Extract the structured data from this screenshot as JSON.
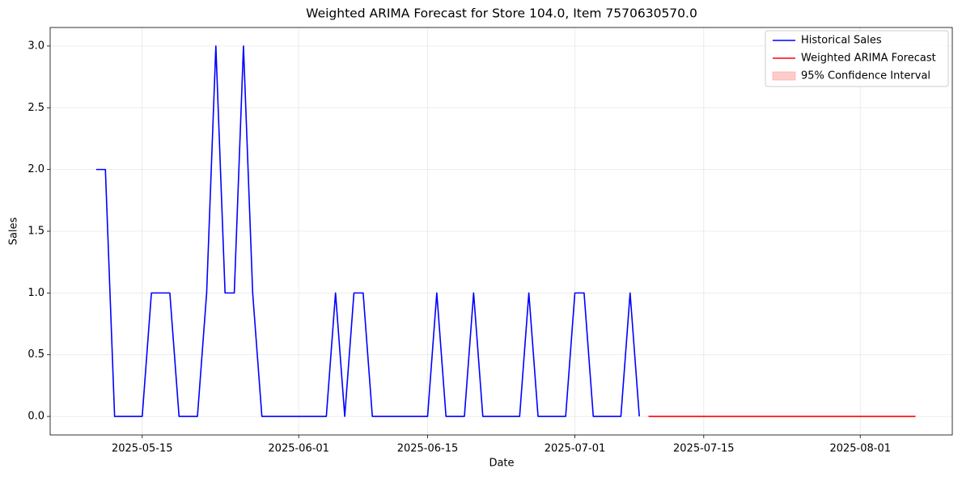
{
  "chart_data": {
    "type": "line",
    "title": "Weighted ARIMA Forecast for Store 104.0, Item 7570630570.0",
    "x_label": "Date",
    "y_label": "Sales",
    "xlim": [
      "2025-05-05",
      "2025-08-11"
    ],
    "xticks": [
      "2025-05-15",
      "2025-06-01",
      "2025-06-15",
      "2025-07-01",
      "2025-07-15",
      "2025-08-01"
    ],
    "ylim": [
      -0.15,
      3.15
    ],
    "yticks": [
      {
        "value": 0,
        "label": "0.0"
      },
      {
        "value": 0.5,
        "label": "0.5"
      },
      {
        "value": 1,
        "label": "1.0"
      },
      {
        "value": 1.5,
        "label": "1.5"
      },
      {
        "value": 2,
        "label": "2.0"
      },
      {
        "value": 2.5,
        "label": "2.5"
      },
      {
        "value": 3,
        "label": "3.0"
      }
    ],
    "grid": true,
    "legend": "upper right",
    "series": [
      {
        "name": "Historical Sales",
        "color": "#0000ff",
        "x": [
          "2025-05-10",
          "2025-05-11",
          "2025-05-12",
          "2025-05-13",
          "2025-05-14",
          "2025-05-15",
          "2025-05-16",
          "2025-05-17",
          "2025-05-18",
          "2025-05-19",
          "2025-05-20",
          "2025-05-21",
          "2025-05-22",
          "2025-05-23",
          "2025-05-24",
          "2025-05-25",
          "2025-05-26",
          "2025-05-27",
          "2025-05-28",
          "2025-05-29",
          "2025-05-30",
          "2025-05-31",
          "2025-06-01",
          "2025-06-02",
          "2025-06-03",
          "2025-06-04",
          "2025-06-05",
          "2025-06-06",
          "2025-06-07",
          "2025-06-08",
          "2025-06-09",
          "2025-06-10",
          "2025-06-11",
          "2025-06-12",
          "2025-06-13",
          "2025-06-14",
          "2025-06-15",
          "2025-06-16",
          "2025-06-17",
          "2025-06-18",
          "2025-06-19",
          "2025-06-20",
          "2025-06-21",
          "2025-06-22",
          "2025-06-23",
          "2025-06-24",
          "2025-06-25",
          "2025-06-26",
          "2025-06-27",
          "2025-06-28",
          "2025-06-29",
          "2025-06-30",
          "2025-07-01",
          "2025-07-02",
          "2025-07-03",
          "2025-07-04",
          "2025-07-05",
          "2025-07-06",
          "2025-07-07",
          "2025-07-08"
        ],
        "values": [
          2,
          2,
          0,
          0,
          0,
          0,
          1,
          1,
          1,
          0,
          0,
          0,
          1,
          3,
          1,
          1,
          3,
          1,
          0,
          0,
          0,
          0,
          0,
          0,
          0,
          0,
          1,
          0,
          1,
          1,
          0,
          0,
          0,
          0,
          0,
          0,
          0,
          1,
          0,
          0,
          0,
          1,
          0,
          0,
          0,
          0,
          0,
          1,
          0,
          0,
          0,
          0,
          1,
          1,
          0,
          0,
          0,
          0,
          1,
          0
        ]
      },
      {
        "name": "Weighted ARIMA Forecast",
        "color": "#ff0000",
        "x": [
          "2025-07-09",
          "2025-07-10",
          "2025-07-11",
          "2025-07-12",
          "2025-07-13",
          "2025-07-14",
          "2025-07-15",
          "2025-07-16",
          "2025-07-17",
          "2025-07-18",
          "2025-07-19",
          "2025-07-20",
          "2025-07-21",
          "2025-07-22",
          "2025-07-23",
          "2025-07-24",
          "2025-07-25",
          "2025-07-26",
          "2025-07-27",
          "2025-07-28",
          "2025-07-29",
          "2025-07-30",
          "2025-07-31",
          "2025-08-01",
          "2025-08-02",
          "2025-08-03",
          "2025-08-04",
          "2025-08-05",
          "2025-08-06",
          "2025-08-07"
        ],
        "values": [
          0,
          0,
          0,
          0,
          0,
          0,
          0,
          0,
          0,
          0,
          0,
          0,
          0,
          0,
          0,
          0,
          0,
          0,
          0,
          0,
          0,
          0,
          0,
          0,
          0,
          0,
          0,
          0,
          0,
          0
        ]
      }
    ],
    "interval": {
      "name": "95% Confidence Interval",
      "color": "#ffcccc",
      "lower": [
        0,
        0,
        0,
        0,
        0,
        0,
        0,
        0,
        0,
        0,
        0,
        0,
        0,
        0,
        0,
        0,
        0,
        0,
        0,
        0,
        0,
        0,
        0,
        0,
        0,
        0,
        0,
        0,
        0,
        0
      ],
      "upper": [
        0,
        0,
        0,
        0,
        0,
        0,
        0,
        0,
        0,
        0,
        0,
        0,
        0,
        0,
        0,
        0,
        0,
        0,
        0,
        0,
        0,
        0,
        0,
        0,
        0,
        0,
        0,
        0,
        0,
        0
      ]
    }
  }
}
